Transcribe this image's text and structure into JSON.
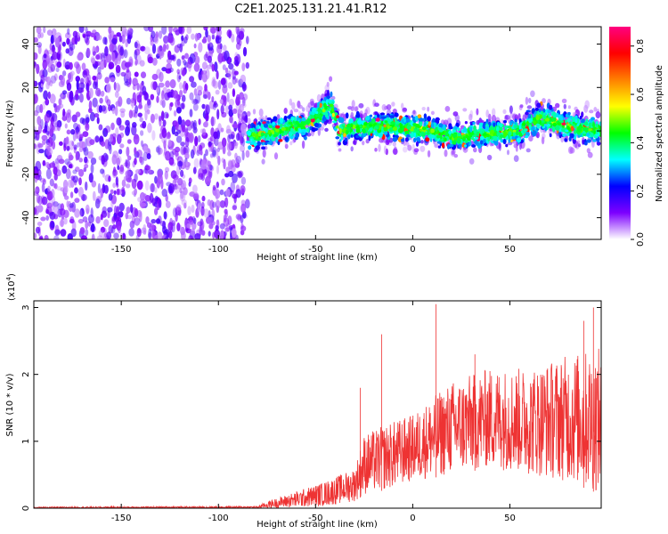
{
  "page": {
    "title": "C2E1.2025.131.21.41.R12"
  },
  "chart_data": [
    {
      "type": "heatmap",
      "title": "C2E1.2025.131.21.41.R12",
      "xlabel": "Height of straight line (km)",
      "ylabel": "Frequency (Hz)",
      "xlim": [
        -195,
        97
      ],
      "ylim": [
        -50,
        48
      ],
      "xticks": [
        -150,
        -100,
        -50,
        0,
        50
      ],
      "yticks": [
        -40,
        -20,
        0,
        20,
        40
      ],
      "noise_region_x": [
        -195,
        -85
      ],
      "signal_region_x": [
        -85,
        97
      ],
      "signal_center_trace": [
        {
          "x": -85,
          "y": -3
        },
        {
          "x": -70,
          "y": 0
        },
        {
          "x": -55,
          "y": 3
        },
        {
          "x": -42,
          "y": 12
        },
        {
          "x": -38,
          "y": 0
        },
        {
          "x": -30,
          "y": 2
        },
        {
          "x": -10,
          "y": 2
        },
        {
          "x": 10,
          "y": 0
        },
        {
          "x": 20,
          "y": -3
        },
        {
          "x": 40,
          "y": -1
        },
        {
          "x": 55,
          "y": 0
        },
        {
          "x": 65,
          "y": 6
        },
        {
          "x": 80,
          "y": 2
        },
        {
          "x": 97,
          "y": 0
        }
      ],
      "colorbar": {
        "label": "Normalized spectral amplitude",
        "range": [
          0,
          0.88
        ],
        "ticks": [
          0.0,
          0.2,
          0.4,
          0.6,
          0.8
        ],
        "colors": [
          "#ffffff",
          "#7d00ff",
          "#0000ff",
          "#00ffff",
          "#00ff00",
          "#ffff00",
          "#ff8000",
          "#ff0000",
          "#ff0080"
        ]
      }
    },
    {
      "type": "line",
      "xlabel": "Height of straight line (km)",
      "ylabel": "SNR (10 * v/v)",
      "y_multiplier": "(x10^4)",
      "y_multiplier_base": "(x10",
      "y_multiplier_exp": "4",
      "y_multiplier_close": ")",
      "xlim": [
        -195,
        97
      ],
      "ylim": [
        0,
        3.1
      ],
      "xticks": [
        -150,
        -100,
        -50,
        0,
        50
      ],
      "yticks": [
        0,
        1,
        2,
        3
      ],
      "series": [
        {
          "color": "#ee3333",
          "envelope": [
            {
              "x": -195,
              "low": 0.0,
              "high": 0.02
            },
            {
              "x": -80,
              "low": 0.0,
              "high": 0.03
            },
            {
              "x": -75,
              "low": 0.0,
              "high": 0.1
            },
            {
              "x": -60,
              "low": 0.01,
              "high": 0.25
            },
            {
              "x": -45,
              "low": 0.03,
              "high": 0.4
            },
            {
              "x": -30,
              "low": 0.1,
              "high": 0.6
            },
            {
              "x": -25,
              "low": 0.2,
              "high": 1.1
            },
            {
              "x": -10,
              "low": 0.3,
              "high": 1.3
            },
            {
              "x": 0,
              "low": 0.4,
              "high": 1.4
            },
            {
              "x": 20,
              "low": 0.5,
              "high": 1.9
            },
            {
              "x": 40,
              "low": 0.6,
              "high": 2.1
            },
            {
              "x": 60,
              "low": 0.5,
              "high": 2.1
            },
            {
              "x": 80,
              "low": 0.4,
              "high": 2.3
            },
            {
              "x": 97,
              "low": 0.2,
              "high": 2.4
            }
          ],
          "spikes": [
            {
              "x": -27,
              "y": 1.8
            },
            {
              "x": -16,
              "y": 2.6
            },
            {
              "x": 12,
              "y": 3.05
            },
            {
              "x": 32,
              "y": 2.3
            },
            {
              "x": 88,
              "y": 2.8
            },
            {
              "x": 93,
              "y": 3.0
            }
          ]
        }
      ]
    }
  ]
}
